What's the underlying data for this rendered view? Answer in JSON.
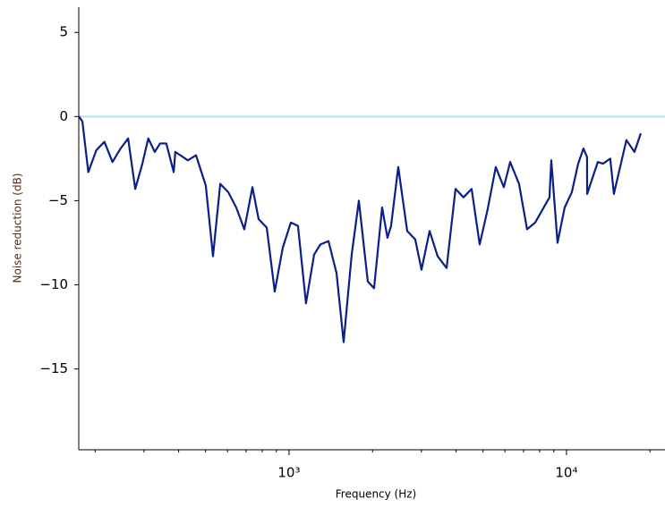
{
  "chart_data": {
    "type": "line",
    "xlabel": "Frequency (Hz)",
    "ylabel": "Noise reduction (dB)",
    "xscale": "log",
    "xlim": [
      174.6,
      22650
    ],
    "ylim": [
      -19.8,
      6.5
    ],
    "xticks": [
      {
        "value": 1000,
        "label": "10³"
      },
      {
        "value": 10000,
        "label": "10⁴"
      }
    ],
    "xminor_ticks": [
      200,
      300,
      400,
      500,
      600,
      700,
      800,
      900,
      2000,
      3000,
      4000,
      5000,
      6000,
      7000,
      8000,
      9000,
      20000
    ],
    "yticks": [
      {
        "value": -15,
        "label": "−15"
      },
      {
        "value": -10,
        "label": "−10"
      },
      {
        "value": -5,
        "label": "−5"
      },
      0,
      5
    ],
    "hline": {
      "value": 0,
      "color": "#aee6f0"
    },
    "series": [
      {
        "color": "#0a1f8a",
        "x": [
          175,
          180,
          189,
          202,
          216,
          231,
          247,
          263,
          279,
          296,
          311,
          328,
          343,
          361,
          384,
          389,
          432,
          462,
          501,
          532,
          565,
          604,
          645,
          690,
          738,
          777,
          831,
          888,
          949,
          1015,
          1077,
          1151,
          1231,
          1297,
          1387,
          1483,
          1573,
          1682,
          1785,
          1922,
          2025,
          2165,
          2263,
          2332,
          2475,
          2666,
          2850,
          3002,
          3211,
          3432,
          3697,
          3981,
          4256,
          4550,
          4865,
          5200,
          5560,
          5945,
          6266,
          6745,
          7210,
          7710,
          8684,
          8815,
          9284,
          9852,
          10450,
          11020,
          11510,
          11860,
          11870,
          12970,
          13550,
          14380,
          14820,
          16440,
          17580,
          18530
        ],
        "values": [
          0,
          -0.3,
          -3.3,
          -2.0,
          -1.5,
          -2.7,
          -1.9,
          -1.3,
          -4.3,
          -2.8,
          -1.3,
          -2.1,
          -1.6,
          -1.6,
          -3.3,
          -2.1,
          -2.6,
          -2.3,
          -4.1,
          -8.3,
          -4.0,
          -4.5,
          -5.4,
          -6.7,
          -4.2,
          -6.1,
          -6.6,
          -10.4,
          -7.8,
          -6.3,
          -6.5,
          -11.1,
          -8.2,
          -7.6,
          -7.4,
          -9.3,
          -13.4,
          -8.2,
          -5.0,
          -9.8,
          -10.2,
          -5.4,
          -7.2,
          -6.5,
          -3.0,
          -6.8,
          -7.3,
          -9.1,
          -6.8,
          -8.3,
          -9.0,
          -4.3,
          -4.8,
          -4.3,
          -7.6,
          -5.5,
          -3.0,
          -4.2,
          -2.7,
          -4.0,
          -6.7,
          -6.3,
          -4.8,
          -2.6,
          -7.5,
          -5.4,
          -4.5,
          -2.8,
          -1.9,
          -2.4,
          -4.6,
          -2.7,
          -2.8,
          -2.5,
          -4.6,
          -1.4,
          -2.1,
          -1.0
        ]
      }
    ]
  }
}
